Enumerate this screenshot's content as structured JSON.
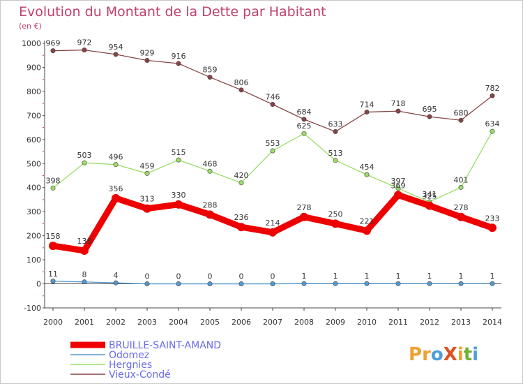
{
  "title": "Evolution du Montant de la Dette par Habitant",
  "subtitle": "(en €)",
  "logo": {
    "text": "ProXiti",
    "letters": [
      "P",
      "r",
      "o",
      "X",
      "i",
      "t",
      "i"
    ],
    "colors": [
      "#f0a030",
      "#f0a030",
      "#4a9ee0",
      "#e05020",
      "#f0a030",
      "#70b030",
      "#4a9ee0"
    ]
  },
  "chart_data": {
    "type": "line",
    "title": "Evolution du Montant de la Dette par Habitant",
    "subtitle": "(en €)",
    "x": [
      "2000",
      "2001",
      "2002",
      "2003",
      "2004",
      "2005",
      "2006",
      "2007",
      "2008",
      "2009",
      "2010",
      "2011",
      "2012",
      "2013",
      "2014"
    ],
    "ylim": [
      -100,
      1000
    ],
    "yticks": [
      -100,
      0,
      100,
      200,
      300,
      400,
      500,
      600,
      700,
      800,
      900,
      1000
    ],
    "grid": false,
    "legend_position": "bottom-left",
    "series": [
      {
        "name": "BRUILLE-SAINT-AMAND",
        "color": "#ee0000",
        "emphasis": true,
        "values": [
          158,
          138,
          356,
          313,
          330,
          288,
          236,
          214,
          278,
          250,
          221,
          369,
          325,
          278,
          233
        ]
      },
      {
        "name": "Odomez",
        "color": "#5599cc",
        "values": [
          11,
          8,
          4,
          0,
          0,
          0,
          0,
          0,
          1,
          1,
          1,
          1,
          1,
          1,
          1
        ]
      },
      {
        "name": "Hergnies",
        "color": "#99dd66",
        "values": [
          398,
          503,
          496,
          459,
          515,
          468,
          420,
          553,
          625,
          513,
          454,
          397,
          341,
          401,
          634
        ]
      },
      {
        "name": "Vieux-Condé",
        "color": "#884444",
        "values": [
          969,
          972,
          954,
          929,
          916,
          859,
          806,
          746,
          684,
          633,
          714,
          718,
          695,
          680,
          782
        ]
      }
    ]
  }
}
